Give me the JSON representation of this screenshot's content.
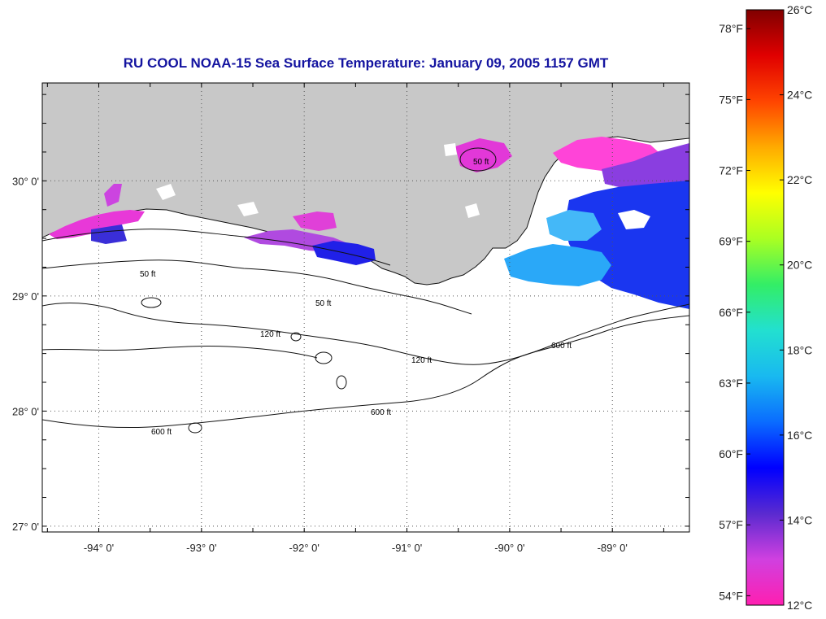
{
  "title": "RU COOL  NOAA-15  Sea Surface Temperature:  January 09, 2005 1157 GMT",
  "map": {
    "lon_range": [
      -94.55,
      -88.25
    ],
    "lat_range": [
      26.95,
      30.85
    ],
    "x_ticks": [
      {
        "value": -94,
        "label": "-94° 0'"
      },
      {
        "value": -93,
        "label": "-93° 0'"
      },
      {
        "value": -92,
        "label": "-92° 0'"
      },
      {
        "value": -91,
        "label": "-91° 0'"
      },
      {
        "value": -90,
        "label": "-90° 0'"
      },
      {
        "value": -89,
        "label": "-89° 0'"
      }
    ],
    "y_ticks": [
      {
        "value": 30,
        "label": "30° 0'"
      },
      {
        "value": 29,
        "label": "29° 0'"
      },
      {
        "value": 28,
        "label": "28° 0'"
      },
      {
        "value": 27,
        "label": "27° 0'"
      }
    ],
    "grid": true,
    "land_color": "#c8c8c8",
    "contour_labels": [
      "50 ft",
      "120 ft",
      "600 ft"
    ]
  },
  "colorbar": {
    "range_c": [
      12,
      26
    ],
    "celsius": [
      {
        "value": 26,
        "label": "26°C"
      },
      {
        "value": 24,
        "label": "24°C"
      },
      {
        "value": 22,
        "label": "22°C"
      },
      {
        "value": 20,
        "label": "20°C"
      },
      {
        "value": 18,
        "label": "18°C"
      },
      {
        "value": 16,
        "label": "16°C"
      },
      {
        "value": 14,
        "label": "14°C"
      },
      {
        "value": 12,
        "label": "12°C"
      }
    ],
    "fahrenheit": [
      {
        "value": 78,
        "label": "78°F"
      },
      {
        "value": 75,
        "label": "75°F"
      },
      {
        "value": 72,
        "label": "72°F"
      },
      {
        "value": 69,
        "label": "69°F"
      },
      {
        "value": 66,
        "label": "66°F"
      },
      {
        "value": 63,
        "label": "63°F"
      },
      {
        "value": 60,
        "label": "60°F"
      },
      {
        "value": 57,
        "label": "57°F"
      },
      {
        "value": 54,
        "label": "54°F"
      }
    ],
    "colors": [
      "#ff1fb0",
      "#d040e0",
      "#5a2ad0",
      "#0000ff",
      "#0a6cff",
      "#19b9f0",
      "#22e0d0",
      "#33ee66",
      "#aaff22",
      "#ffff00",
      "#ffaa00",
      "#ff4400",
      "#e00000",
      "#800000"
    ]
  }
}
